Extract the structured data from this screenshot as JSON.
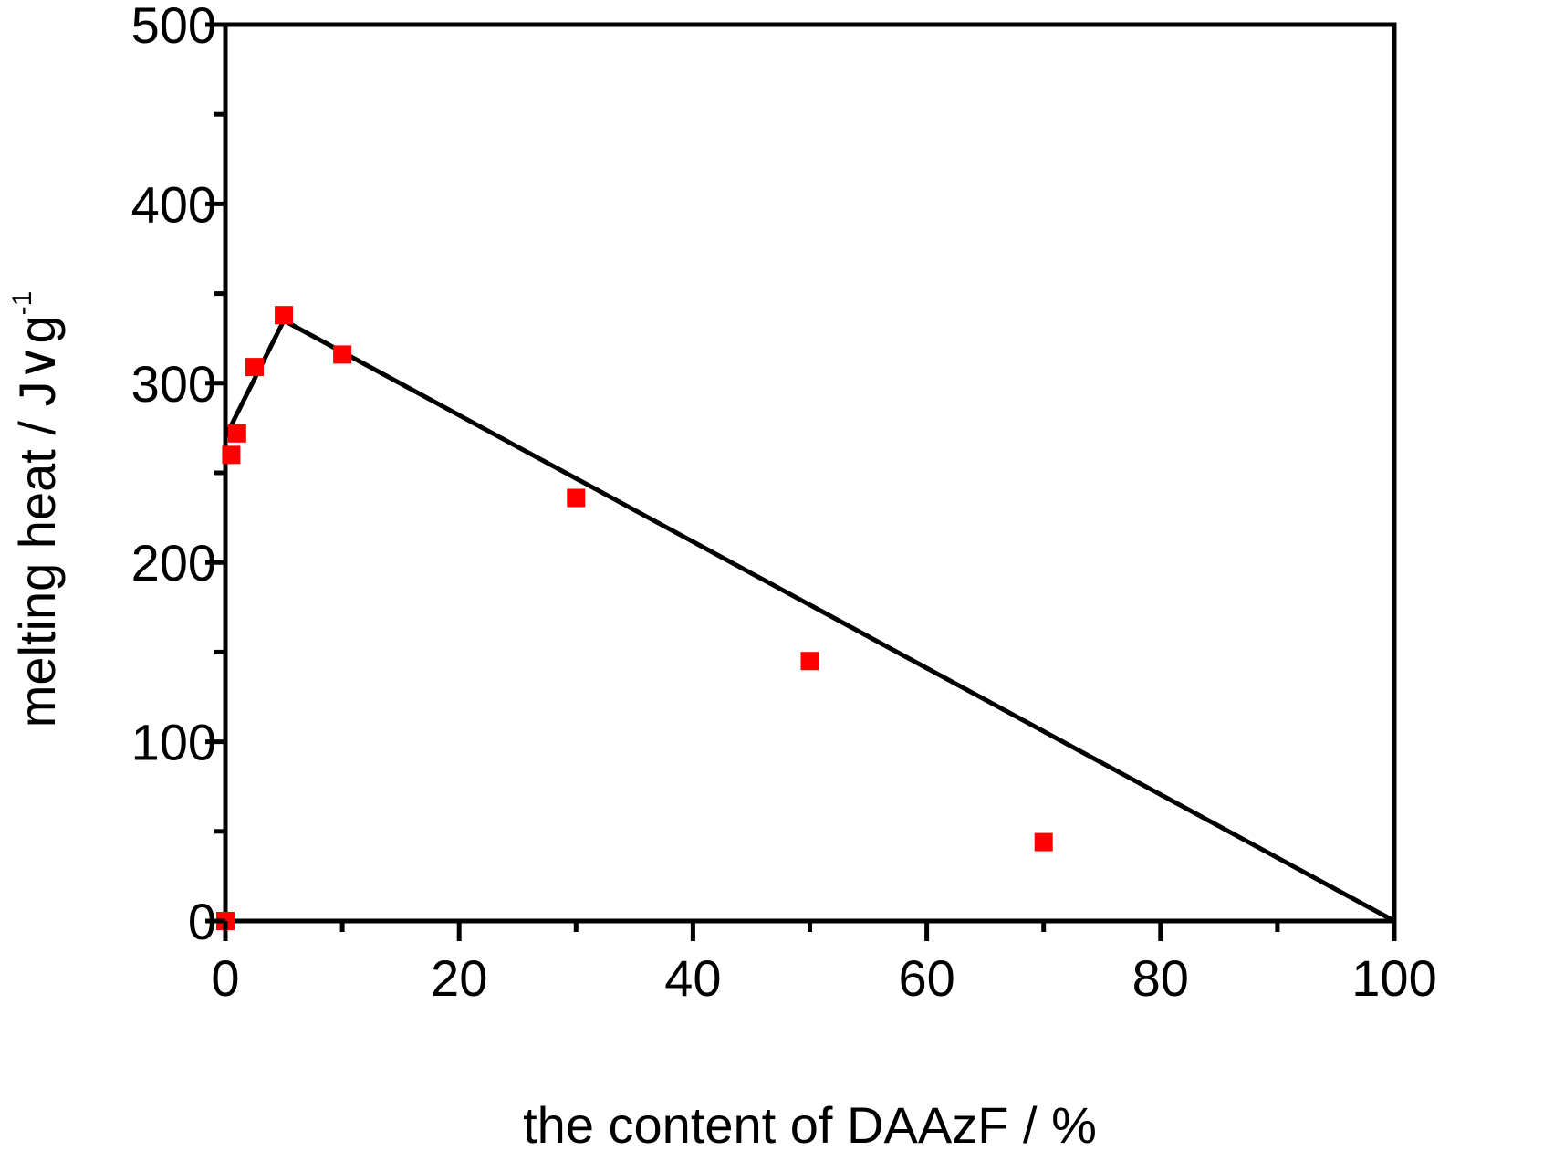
{
  "chart_data": {
    "type": "scatter",
    "xlabel": "the content of DAAzF / %",
    "ylabel": "melting heat / J",
    "ylabel_unit_symbol": "∨g",
    "ylabel_superscript": "-1",
    "xlim": [
      0,
      100
    ],
    "ylim": [
      0,
      500
    ],
    "x_ticks": [
      "0",
      "20",
      "40",
      "60",
      "80",
      "100"
    ],
    "y_ticks": [
      "0",
      "100",
      "200",
      "300",
      "400",
      "500"
    ],
    "grid": false,
    "legend": "none",
    "colors": {
      "points": "#ff0000",
      "line": "#000000",
      "frame": "#000000"
    },
    "series": [
      {
        "kind": "points",
        "x": [
          0,
          0.5,
          1,
          2.5,
          5,
          10,
          30,
          50,
          70
        ],
        "y": [
          0,
          260,
          272,
          309,
          338,
          316,
          236,
          145,
          44
        ]
      },
      {
        "kind": "line",
        "x": [
          0,
          5,
          100
        ],
        "y": [
          270,
          335,
          0
        ]
      }
    ]
  }
}
